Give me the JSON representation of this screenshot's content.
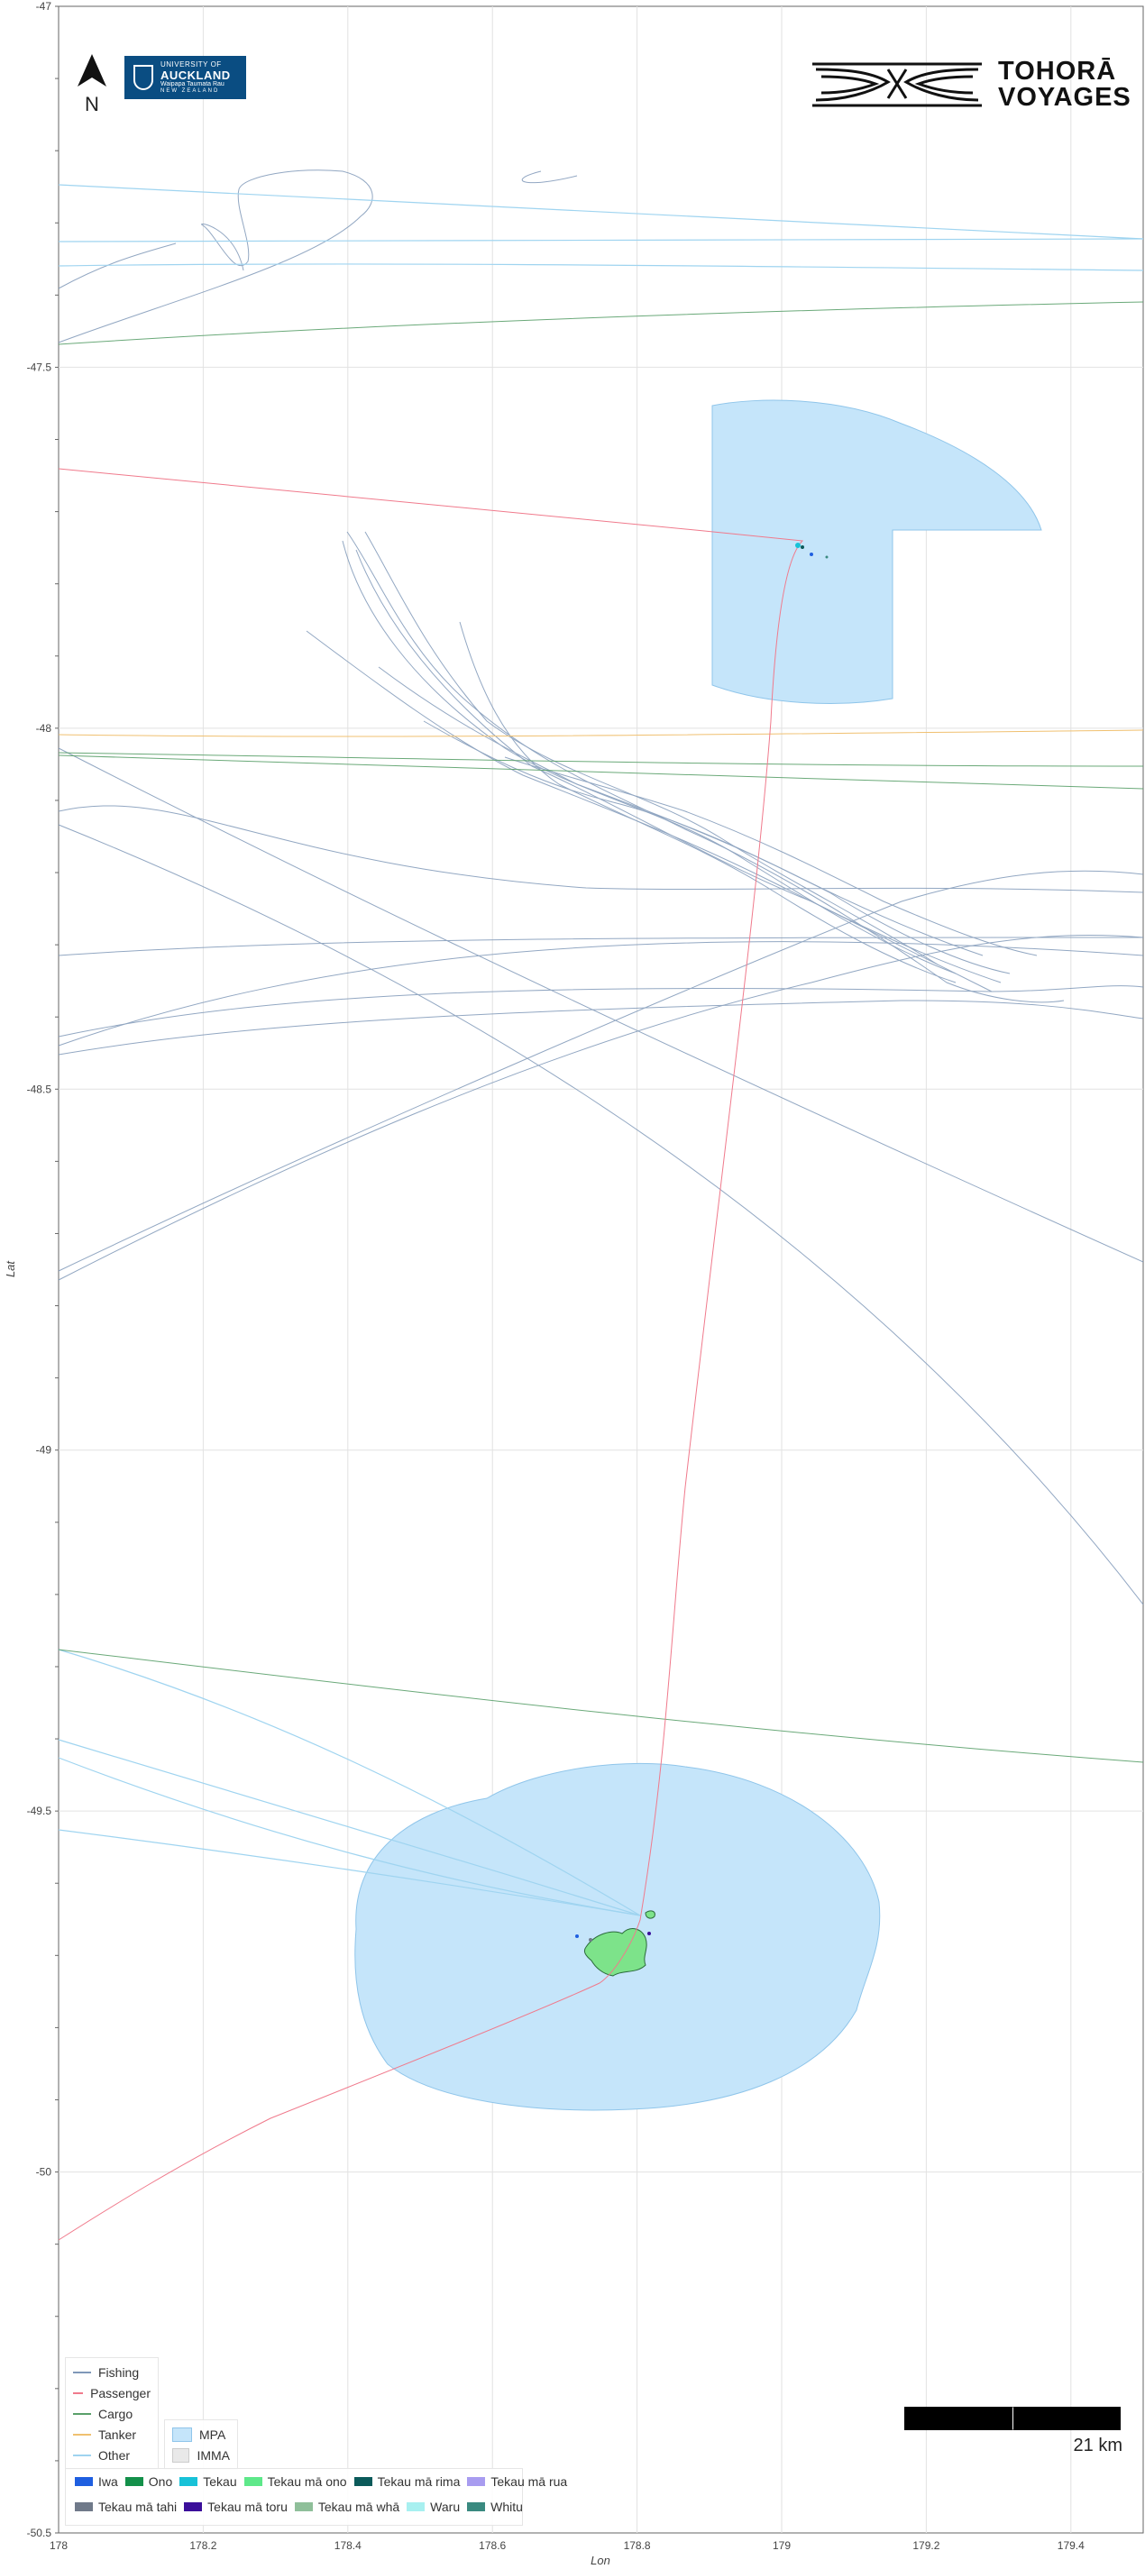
{
  "map": {
    "lon_range": [
      178.0,
      179.5
    ],
    "lat_range": [
      -47.0,
      -50.5
    ],
    "x_ticks": [
      "178",
      "178.2",
      "178.4",
      "178.6",
      "178.8",
      "179",
      "179.2",
      "179.4"
    ],
    "y_ticks": [
      "-47",
      "-47.5",
      "-48",
      "-48.5",
      "-49",
      "-49.5",
      "-50",
      "-50.5"
    ],
    "x_label": "Lon",
    "y_label": "Lat",
    "grid": true
  },
  "north_arrow": {
    "letter": "N",
    "icon": "north-arrow-icon"
  },
  "logos": {
    "university": {
      "line1": "UNIVERSITY OF",
      "line2": "AUCKLAND",
      "line3": "Waipapa Taumata Rau",
      "line4": "NEW ZEALAND",
      "color": "#0a4d82"
    },
    "project": {
      "line1": "TOHORĀ",
      "line2": "VOYAGES"
    }
  },
  "scale_bar": {
    "label": "21 km"
  },
  "legend_vessels": [
    {
      "label": "Fishing",
      "color": "#7f98b8"
    },
    {
      "label": "Passenger",
      "color": "#f07a8c"
    },
    {
      "label": "Cargo",
      "color": "#5aa06a"
    },
    {
      "label": "Tanker",
      "color": "#f0c070"
    },
    {
      "label": "Other",
      "color": "#9fd4f0"
    }
  ],
  "legend_areas": [
    {
      "label": "MPA",
      "color": "#c5e5fa"
    },
    {
      "label": "IMMA",
      "color": "#e9e9e9"
    }
  ],
  "legend_tags_row1": [
    {
      "label": "Iwa",
      "color": "#1f5fe0"
    },
    {
      "label": "Ono",
      "color": "#14904a"
    },
    {
      "label": "Tekau",
      "color": "#18c2d8"
    },
    {
      "label": "Tekau mā ono",
      "color": "#5ee88a"
    },
    {
      "label": "Tekau mā rima",
      "color": "#0b5a5a"
    },
    {
      "label": "Tekau mā rua",
      "color": "#a89cf0"
    }
  ],
  "legend_tags_row2": [
    {
      "label": "Tekau mā tahi",
      "color": "#707a8a"
    },
    {
      "label": "Tekau mā toru",
      "color": "#3b0f9a"
    },
    {
      "label": "Tekau mā whā",
      "color": "#8fbf9a"
    },
    {
      "label": "Waru",
      "color": "#a8f0f0"
    },
    {
      "label": "Whitu",
      "color": "#3a8a80"
    }
  ]
}
